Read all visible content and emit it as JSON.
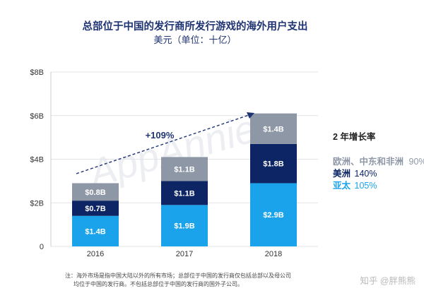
{
  "chart_data": {
    "type": "bar",
    "stacked": true,
    "title": "总部位于中国的发行商所发行游戏的海外用户支出",
    "subtitle": "美元（单位：十亿）",
    "categories": [
      "2016",
      "2017",
      "2018"
    ],
    "y_ticks": [
      "$8B",
      "$6B",
      "$4B",
      "$2B",
      "0"
    ],
    "ylim": [
      0,
      8
    ],
    "grid": true,
    "series": [
      {
        "name": "亚太",
        "color": "#1aa3ea",
        "values": [
          1.4,
          1.9,
          2.9
        ],
        "labels": [
          "$1.4B",
          "$1.9B",
          "$2.9B"
        ]
      },
      {
        "name": "美洲",
        "color": "#0d2564",
        "values": [
          0.7,
          1.1,
          1.8
        ],
        "labels": [
          "$0.7B",
          "$1.1B",
          "$1.8B"
        ]
      },
      {
        "name": "欧洲、中东和非洲",
        "color": "#8e97a6",
        "values": [
          0.8,
          1.1,
          1.4
        ],
        "labels": [
          "$0.8B",
          "$1.1B",
          "$1.4B"
        ]
      }
    ],
    "annotation": "+109%",
    "legend": {
      "title": "2 年增长率",
      "placement": "right",
      "items": [
        {
          "region": "欧洲、中东和非洲",
          "rate": "90%",
          "color": "#8e97a6"
        },
        {
          "region": "美洲",
          "rate": "140%",
          "color": "#0d2564"
        },
        {
          "region": "亚太",
          "rate": "105%",
          "color": "#1aa3ea"
        }
      ]
    },
    "watermark": "AppAnnie"
  },
  "footnote": {
    "line1": "注：海外市场是指中国大陆以外的所有市场；总部位于中国的发行商仅包括总部以及母公司",
    "line2": "均位于中国的发行商。不包括总部位于中国的发行商的国外子公司。"
  },
  "source_watermark": "知乎 @胖熊熊"
}
